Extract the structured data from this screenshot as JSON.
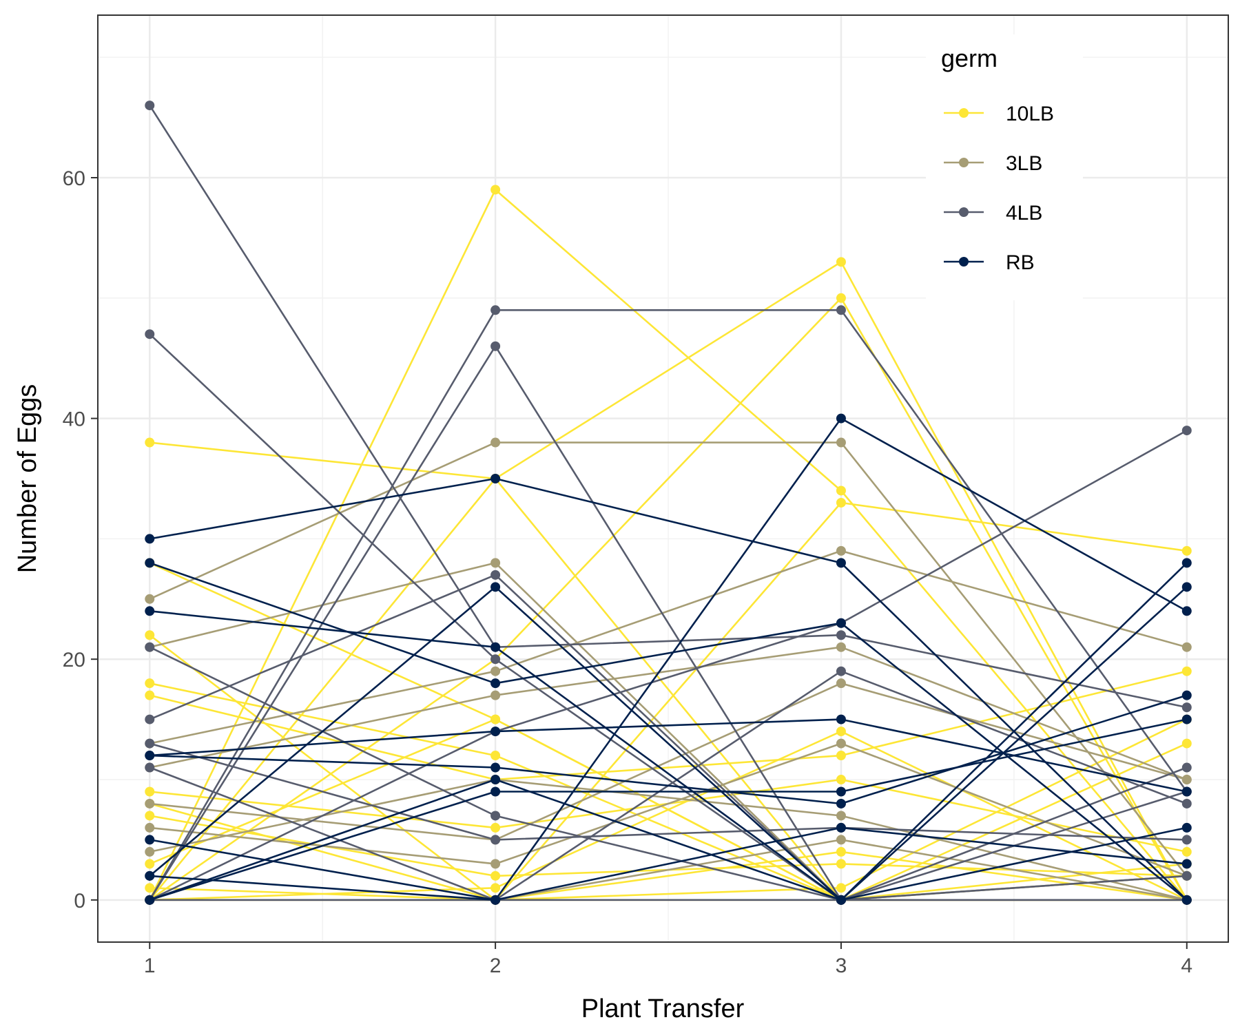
{
  "chart_data": {
    "type": "line",
    "xlabel": "Plant Transfer",
    "ylabel": "Number of Eggs",
    "x_ticks": [
      1,
      2,
      3,
      4
    ],
    "y_ticks": [
      0,
      20,
      40,
      60
    ],
    "xlim": [
      0.85,
      4.12
    ],
    "ylim": [
      -3.5,
      73.5
    ],
    "grid": true,
    "legend": {
      "title": "germ",
      "position": "top-right",
      "entries": [
        {
          "name": "10LB",
          "color": "#fde636"
        },
        {
          "name": "3LB",
          "color": "#a69d75"
        },
        {
          "name": "4LB",
          "color": "#575c6d"
        },
        {
          "name": "RB",
          "color": "#00204d"
        }
      ]
    },
    "x": [
      1,
      2,
      3,
      4
    ],
    "series": [
      {
        "germ": "10LB",
        "values": [
          0,
          59,
          34,
          0
        ]
      },
      {
        "germ": "10LB",
        "values": [
          0,
          35,
          53,
          0
        ]
      },
      {
        "germ": "10LB",
        "values": [
          38,
          35,
          0,
          0
        ]
      },
      {
        "germ": "10LB",
        "values": [
          0,
          20,
          50,
          0
        ]
      },
      {
        "germ": "10LB",
        "values": [
          28,
          15,
          0,
          0
        ]
      },
      {
        "germ": "10LB",
        "values": [
          22,
          0,
          33,
          29
        ]
      },
      {
        "germ": "10LB",
        "values": [
          18,
          12,
          0,
          13
        ]
      },
      {
        "germ": "10LB",
        "values": [
          17,
          10,
          12,
          19
        ]
      },
      {
        "germ": "10LB",
        "values": [
          9,
          6,
          10,
          4
        ]
      },
      {
        "germ": "10LB",
        "values": [
          8,
          0,
          0,
          3
        ]
      },
      {
        "germ": "10LB",
        "values": [
          7,
          2,
          3,
          2
        ]
      },
      {
        "germ": "10LB",
        "values": [
          1,
          0,
          1,
          15
        ]
      },
      {
        "germ": "10LB",
        "values": [
          0,
          1,
          14,
          0
        ]
      },
      {
        "germ": "10LB",
        "values": [
          0,
          0,
          4,
          0
        ]
      },
      {
        "germ": "10LB",
        "values": [
          3,
          15,
          0,
          2
        ]
      },
      {
        "germ": "3LB",
        "values": [
          25,
          38,
          38,
          2
        ]
      },
      {
        "germ": "3LB",
        "values": [
          21,
          28,
          0,
          2
        ]
      },
      {
        "germ": "3LB",
        "values": [
          13,
          19,
          29,
          21
        ]
      },
      {
        "germ": "3LB",
        "values": [
          11,
          17,
          21,
          10
        ]
      },
      {
        "germ": "3LB",
        "values": [
          8,
          5,
          18,
          10
        ]
      },
      {
        "germ": "3LB",
        "values": [
          6,
          3,
          13,
          2
        ]
      },
      {
        "germ": "3LB",
        "values": [
          4,
          10,
          7,
          0
        ]
      },
      {
        "germ": "3LB",
        "values": [
          0,
          0,
          5,
          0
        ]
      },
      {
        "germ": "4LB",
        "values": [
          66,
          21,
          22,
          16
        ]
      },
      {
        "germ": "4LB",
        "values": [
          47,
          20,
          0,
          2
        ]
      },
      {
        "germ": "4LB",
        "values": [
          0,
          49,
          49,
          9
        ]
      },
      {
        "germ": "4LB",
        "values": [
          0,
          46,
          0,
          0
        ]
      },
      {
        "germ": "4LB",
        "values": [
          15,
          27,
          0,
          11
        ]
      },
      {
        "germ": "4LB",
        "values": [
          21,
          7,
          0,
          0
        ]
      },
      {
        "germ": "4LB",
        "values": [
          13,
          5,
          6,
          5
        ]
      },
      {
        "germ": "4LB",
        "values": [
          11,
          0,
          19,
          8
        ]
      },
      {
        "germ": "4LB",
        "values": [
          0,
          14,
          23,
          39
        ]
      },
      {
        "germ": "4LB",
        "values": [
          0,
          0,
          0,
          9
        ]
      },
      {
        "germ": "RB",
        "values": [
          30,
          35,
          28,
          0
        ]
      },
      {
        "germ": "RB",
        "values": [
          28,
          18,
          23,
          0
        ]
      },
      {
        "germ": "RB",
        "values": [
          24,
          21,
          0,
          28
        ]
      },
      {
        "germ": "RB",
        "values": [
          12,
          14,
          15,
          9
        ]
      },
      {
        "germ": "RB",
        "values": [
          12,
          11,
          8,
          17
        ]
      },
      {
        "germ": "RB",
        "values": [
          5,
          0,
          40,
          24
        ]
      },
      {
        "germ": "RB",
        "values": [
          2,
          26,
          0,
          26
        ]
      },
      {
        "germ": "RB",
        "values": [
          0,
          9,
          9,
          15
        ]
      },
      {
        "germ": "RB",
        "values": [
          2,
          0,
          6,
          3
        ]
      },
      {
        "germ": "RB",
        "values": [
          0,
          10,
          0,
          6
        ]
      }
    ]
  }
}
